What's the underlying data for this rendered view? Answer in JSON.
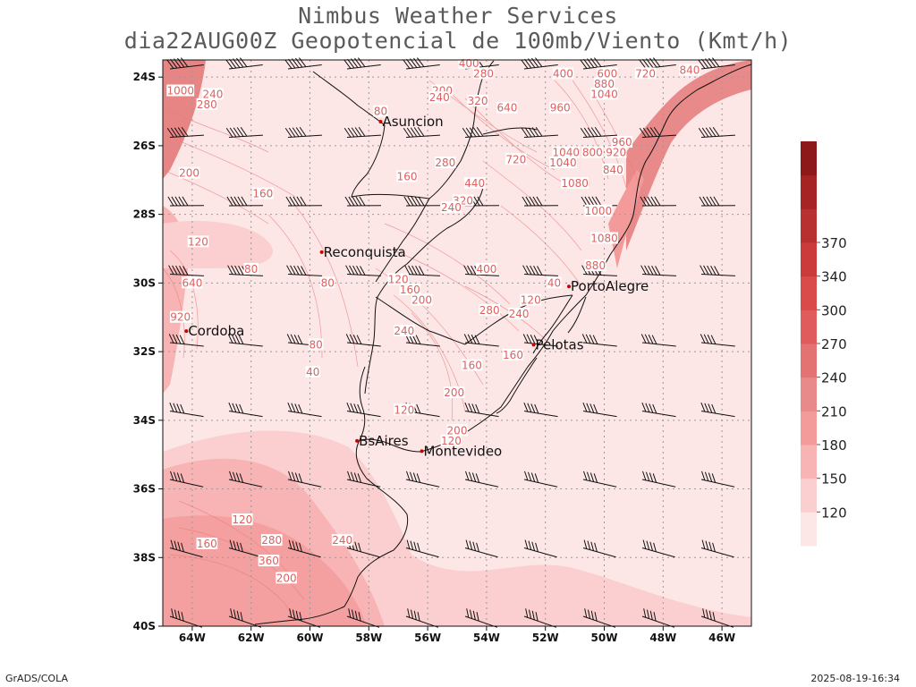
{
  "header": {
    "title_line1": "Nimbus Weather Services",
    "title_line2": "dia22AUG00Z Geopotencial de 100mb/Viento (Kmt/h)"
  },
  "footer": {
    "left": "GrADS/COLA",
    "right": "2025-08-19-16:34"
  },
  "map": {
    "lat_labels": [
      "24S",
      "26S",
      "28S",
      "30S",
      "32S",
      "34S",
      "36S",
      "38S",
      "40S"
    ],
    "lon_labels": [
      "64W",
      "62W",
      "60W",
      "58W",
      "56W",
      "54W",
      "52W",
      "50W",
      "48W",
      "46W"
    ],
    "cities": [
      {
        "name": "Asuncion",
        "lon": -57.6,
        "lat": -25.3
      },
      {
        "name": "Reconquista",
        "lon": -59.6,
        "lat": -29.1
      },
      {
        "name": "PortoAlegre",
        "lon": -51.2,
        "lat": -30.1
      },
      {
        "name": "Cordoba",
        "lon": -64.2,
        "lat": -31.4
      },
      {
        "name": "Pelotas",
        "lon": -52.4,
        "lat": -31.8
      },
      {
        "name": "BsAires",
        "lon": -58.4,
        "lat": -34.6
      },
      {
        "name": "Montevideo",
        "lon": -56.2,
        "lat": -34.9
      }
    ],
    "contour_labels": [
      {
        "text": "1000",
        "lon": -64.4,
        "lat": -24.4
      },
      {
        "text": "240",
        "lon": -63.3,
        "lat": -24.5
      },
      {
        "text": "280",
        "lon": -63.5,
        "lat": -24.8
      },
      {
        "text": "200",
        "lon": -64.1,
        "lat": -26.8
      },
      {
        "text": "160",
        "lon": -61.6,
        "lat": -27.4
      },
      {
        "text": "80",
        "lon": -57.6,
        "lat": -25.0
      },
      {
        "text": "160",
        "lon": -56.7,
        "lat": -26.9
      },
      {
        "text": "200",
        "lon": -55.5,
        "lat": -24.4
      },
      {
        "text": "240",
        "lon": -55.6,
        "lat": -24.6
      },
      {
        "text": "320",
        "lon": -54.3,
        "lat": -24.7
      },
      {
        "text": "280",
        "lon": -55.4,
        "lat": -26.5
      },
      {
        "text": "400",
        "lon": -54.6,
        "lat": -23.6
      },
      {
        "text": "280",
        "lon": -54.1,
        "lat": -23.9
      },
      {
        "text": "640",
        "lon": -53.3,
        "lat": -24.9
      },
      {
        "text": "960",
        "lon": -51.5,
        "lat": -24.9
      },
      {
        "text": "400",
        "lon": -51.4,
        "lat": -23.9
      },
      {
        "text": "600",
        "lon": -49.9,
        "lat": -23.9
      },
      {
        "text": "720",
        "lon": -48.6,
        "lat": -23.9
      },
      {
        "text": "840",
        "lon": -47.1,
        "lat": -23.8
      },
      {
        "text": "880",
        "lon": -50.0,
        "lat": -24.2
      },
      {
        "text": "1040",
        "lon": -50.0,
        "lat": -24.5
      },
      {
        "text": "720",
        "lon": -53.0,
        "lat": -26.4
      },
      {
        "text": "1040",
        "lon": -51.3,
        "lat": -26.2
      },
      {
        "text": "1040",
        "lon": -51.4,
        "lat": -26.5
      },
      {
        "text": "800",
        "lon": -50.4,
        "lat": -26.2
      },
      {
        "text": "920",
        "lon": -49.6,
        "lat": -26.2
      },
      {
        "text": "960",
        "lon": -49.4,
        "lat": -25.9
      },
      {
        "text": "840",
        "lon": -49.7,
        "lat": -26.7
      },
      {
        "text": "440",
        "lon": -54.4,
        "lat": -27.1
      },
      {
        "text": "320",
        "lon": -54.8,
        "lat": -27.6
      },
      {
        "text": "240",
        "lon": -55.2,
        "lat": -27.8
      },
      {
        "text": "1080",
        "lon": -51.0,
        "lat": -27.1
      },
      {
        "text": "1000",
        "lon": -50.2,
        "lat": -27.9
      },
      {
        "text": "1080",
        "lon": -50.0,
        "lat": -28.7
      },
      {
        "text": "880",
        "lon": -50.3,
        "lat": -29.5
      },
      {
        "text": "120",
        "lon": -63.8,
        "lat": -28.8
      },
      {
        "text": "80",
        "lon": -62.0,
        "lat": -29.6
      },
      {
        "text": "640",
        "lon": -64.0,
        "lat": -30.0
      },
      {
        "text": "920",
        "lon": -64.4,
        "lat": -31.0
      },
      {
        "text": "80",
        "lon": -59.4,
        "lat": -30.0
      },
      {
        "text": "400",
        "lon": -54.0,
        "lat": -29.6
      },
      {
        "text": "120",
        "lon": -57.0,
        "lat": -29.9
      },
      {
        "text": "160",
        "lon": -56.6,
        "lat": -30.2
      },
      {
        "text": "200",
        "lon": -56.2,
        "lat": -30.5
      },
      {
        "text": "40",
        "lon": -51.7,
        "lat": -30.0
      },
      {
        "text": "120",
        "lon": -52.5,
        "lat": -30.5
      },
      {
        "text": "280",
        "lon": -53.9,
        "lat": -30.8
      },
      {
        "text": "240",
        "lon": -52.9,
        "lat": -30.9
      },
      {
        "text": "240",
        "lon": -56.8,
        "lat": -31.4
      },
      {
        "text": "80",
        "lon": -59.8,
        "lat": -31.8
      },
      {
        "text": "40",
        "lon": -59.9,
        "lat": -32.6
      },
      {
        "text": "160",
        "lon": -54.5,
        "lat": -32.4
      },
      {
        "text": "160",
        "lon": -53.1,
        "lat": -32.1
      },
      {
        "text": "200",
        "lon": -55.1,
        "lat": -33.2
      },
      {
        "text": "120",
        "lon": -56.8,
        "lat": -33.7
      },
      {
        "text": "200",
        "lon": -55.0,
        "lat": -34.3
      },
      {
        "text": "120",
        "lon": -55.2,
        "lat": -34.6
      },
      {
        "text": "120",
        "lon": -62.3,
        "lat": -36.9
      },
      {
        "text": "280",
        "lon": -61.3,
        "lat": -37.5
      },
      {
        "text": "160",
        "lon": -63.5,
        "lat": -37.6
      },
      {
        "text": "240",
        "lon": -58.9,
        "lat": -37.5
      },
      {
        "text": "360",
        "lon": -61.4,
        "lat": -38.1
      },
      {
        "text": "200",
        "lon": -60.8,
        "lat": -38.6
      }
    ]
  },
  "colorbar": {
    "labels": [
      "120",
      "150",
      "180",
      "210",
      "240",
      "270",
      "300",
      "340",
      "370"
    ],
    "colors": [
      "#fce6e6",
      "#fbcfcf",
      "#f8b4b4",
      "#f39a9a",
      "#e88a8a",
      "#e37373",
      "#e05b5b",
      "#d94a4a",
      "#cc3b3b",
      "#b93030",
      "#a62424",
      "#8e1919"
    ]
  }
}
